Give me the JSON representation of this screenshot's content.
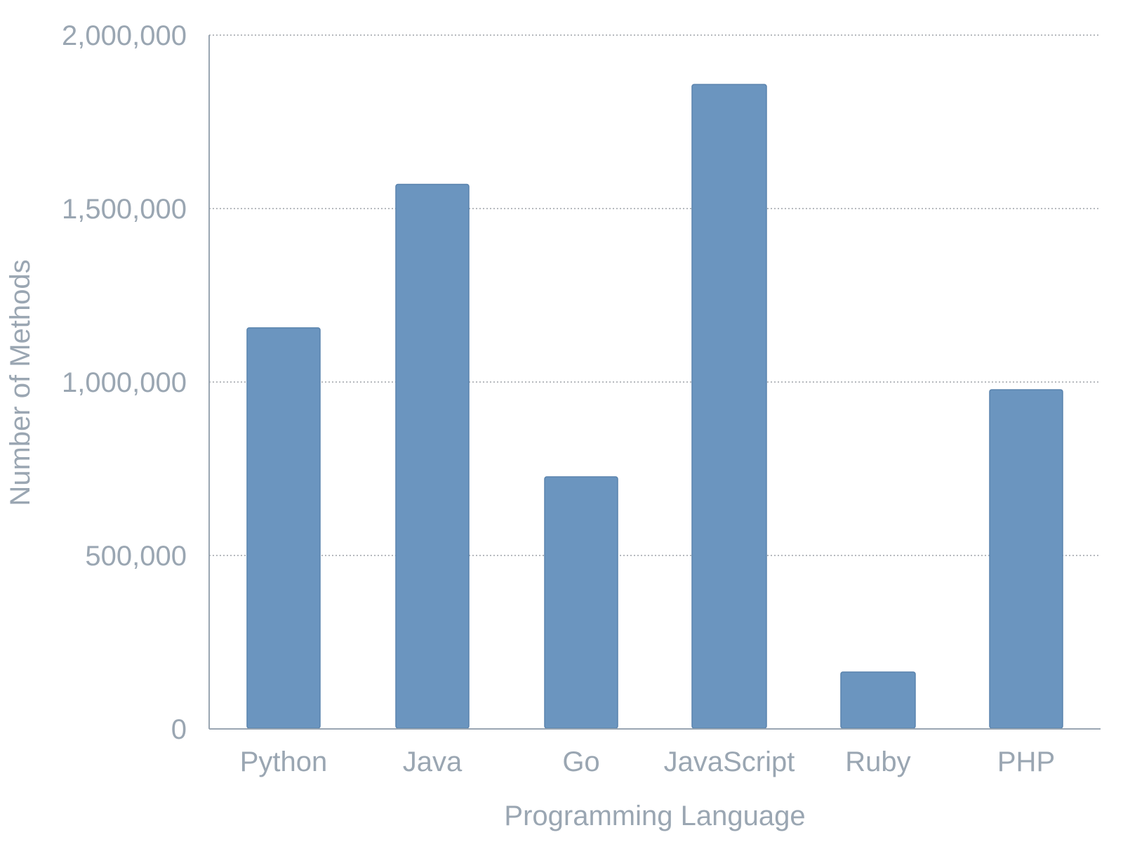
{
  "chart_data": {
    "type": "bar",
    "categories": [
      "Python",
      "Java",
      "Go",
      "JavaScript",
      "Ruby",
      "PHP"
    ],
    "values": [
      1156085,
      1569889,
      726768,
      1857835,
      164048,
      977821
    ],
    "xlabel": "Programming Language",
    "ylabel": "Number of Methods",
    "ylim": [
      0,
      2000000
    ],
    "yticks": [
      0,
      500000,
      1000000,
      1500000,
      2000000
    ],
    "ytick_labels": [
      "0",
      "500,000",
      "1,000,000",
      "1,500,000",
      "2,000,000"
    ],
    "grid": true,
    "legend": "none",
    "colors": {
      "bar_fill": "#6b95bf",
      "bar_stroke": "#5a83ad",
      "text": "#9aa6b2"
    }
  }
}
